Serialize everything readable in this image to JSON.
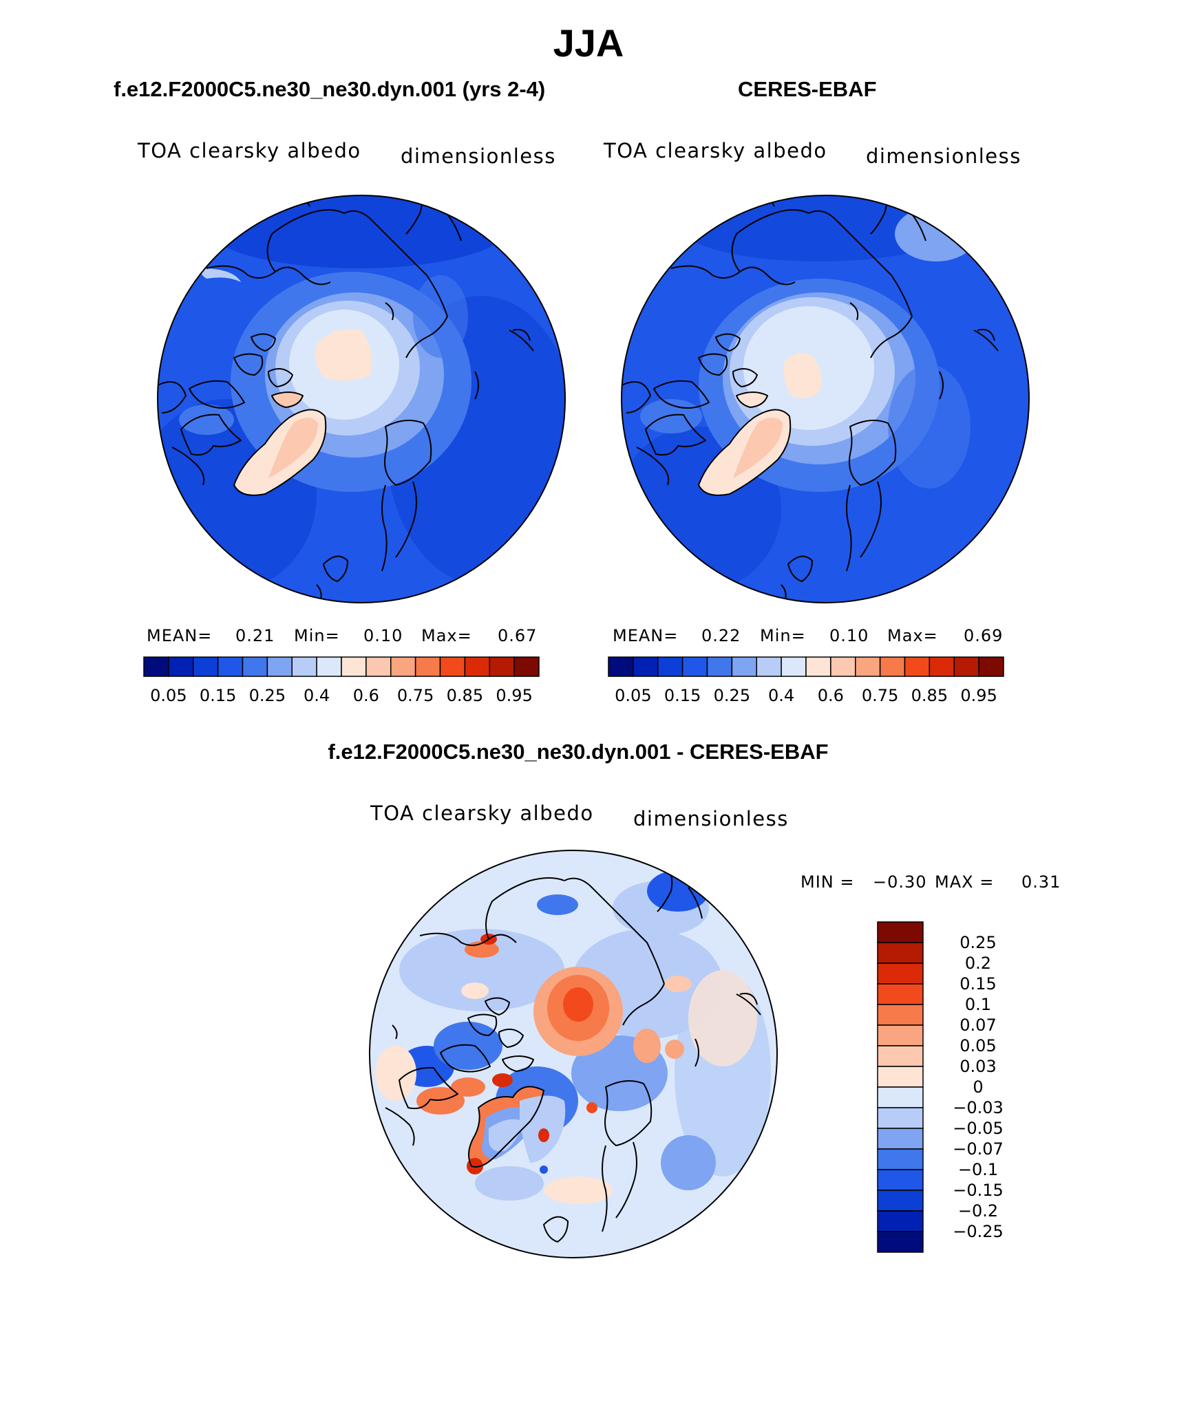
{
  "title": "JJA",
  "panels": [
    {
      "title": "f.e12.F2000C5.ne30_ne30.dyn.001 (yrs 2-4)",
      "variable": "TOA clearsky albedo",
      "units": "dimensionless",
      "stats": {
        "mean_label": "MEAN=",
        "mean": "0.21",
        "min_label": "Min=",
        "min": "0.10",
        "max_label": "Max=",
        "max": "0.67"
      }
    },
    {
      "title": "CERES-EBAF",
      "variable": "TOA clearsky albedo",
      "units": "dimensionless",
      "stats": {
        "mean_label": "MEAN=",
        "mean": "0.22",
        "min_label": "Min=",
        "min": "0.10",
        "max_label": "Max=",
        "max": "0.69"
      }
    },
    {
      "title": "f.e12.F2000C5.ne30_ne30.dyn.001 - CERES-EBAF",
      "variable": "TOA clearsky albedo",
      "units": "dimensionless",
      "stats": {
        "min_label": "MIN =",
        "min": "−0.30",
        "max_label": "MAX =",
        "max": "0.31"
      }
    }
  ],
  "colorbar_abs": {
    "labels": [
      "0.05",
      "0.15",
      "0.25",
      "0.4",
      "0.6",
      "0.75",
      "0.85",
      "0.95"
    ],
    "colors": [
      "#000c7d",
      "#0021b3",
      "#0c3fd6",
      "#1f57e8",
      "#4177ec",
      "#7ea4f2",
      "#b7cdf7",
      "#dbe8fb",
      "#fde4d5",
      "#fcc8b0",
      "#f9a57f",
      "#f67a4a",
      "#f24a1d",
      "#db2a08",
      "#b51a03",
      "#7d0a00"
    ]
  },
  "colorbar_diff": {
    "labels": [
      "0.25",
      "0.2",
      "0.15",
      "0.1",
      "0.07",
      "0.05",
      "0.03",
      "0",
      "−0.03",
      "−0.05",
      "−0.07",
      "−0.1",
      "−0.15",
      "−0.2",
      "−0.25"
    ],
    "colors": [
      "#7d0a00",
      "#b51a03",
      "#db2a08",
      "#f24a1d",
      "#f67a4a",
      "#f9a57f",
      "#fcc8b0",
      "#fde4d5",
      "#dbe8fb",
      "#b7cdf7",
      "#7ea4f2",
      "#4177ec",
      "#1f57e8",
      "#0c3fd6",
      "#0021b3",
      "#000c7d"
    ]
  },
  "colors": {
    "ocean_abs": "#1f57e8",
    "ice_pale": "#dbe8fb",
    "greenland": "#fcc8b0",
    "diff_background": "#dbe8fb",
    "diff_positive": "#f67a4a",
    "diff_negative": "#4177ec"
  }
}
